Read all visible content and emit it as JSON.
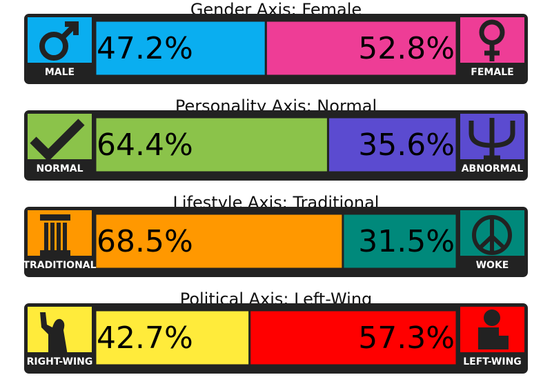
{
  "axes": [
    {
      "title": "Gender Axis: Female",
      "left": {
        "label": "MALE",
        "value": 47.2,
        "value_label": "47.2%",
        "color": "#0aaef0"
      },
      "right": {
        "label": "FEMALE",
        "value": 52.8,
        "value_label": "52.8%",
        "color": "#ee3d96"
      }
    },
    {
      "title": "Personality Axis: Normal",
      "left": {
        "label": "NORMAL",
        "value": 64.4,
        "value_label": "64.4%",
        "color": "#8bc34a"
      },
      "right": {
        "label": "ABNORMAL",
        "value": 35.6,
        "value_label": "35.6%",
        "color": "#5b4bd0"
      }
    },
    {
      "title": "Lifestyle Axis: Traditional",
      "left": {
        "label": "TRADITIONAL",
        "value": 68.5,
        "value_label": "68.5%",
        "color": "#ff9800"
      },
      "right": {
        "label": "WOKE",
        "value": 31.5,
        "value_label": "31.5%",
        "color": "#00897b"
      }
    },
    {
      "title": "Political Axis: Left-Wing",
      "left": {
        "label": "RIGHT-WING",
        "value": 42.7,
        "value_label": "42.7%",
        "color": "#ffeb3b"
      },
      "right": {
        "label": "LEFT-WING",
        "value": 57.3,
        "value_label": "57.3%",
        "color": "#ff0000"
      }
    }
  ]
}
